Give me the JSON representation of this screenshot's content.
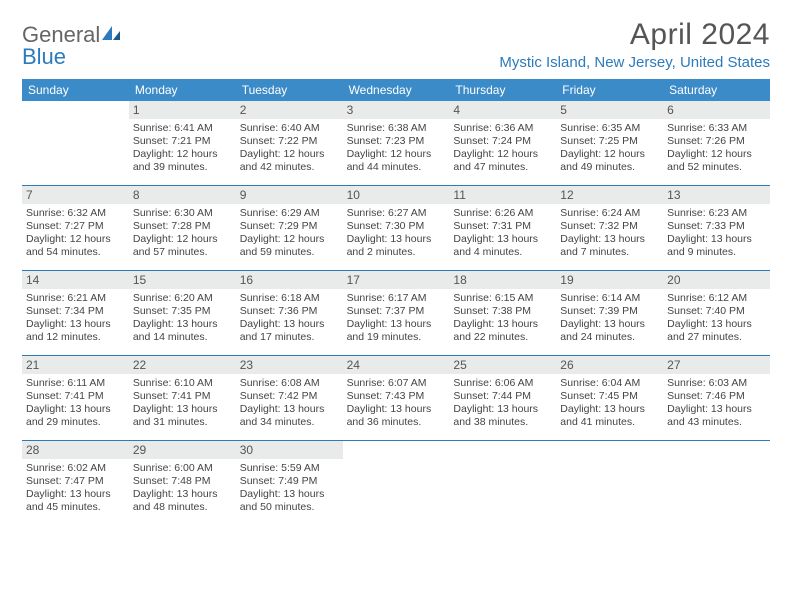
{
  "logo": {
    "line1": "General",
    "line2": "Blue"
  },
  "title": "April 2024",
  "subtitle": "Mystic Island, New Jersey, United States",
  "colors": {
    "header_bg": "#3b8bc9",
    "accent": "#2b7bbd",
    "daynum_bg": "#e9eaea",
    "text": "#444444",
    "page_bg": "#ffffff"
  },
  "typography": {
    "title_fontsize": 30,
    "subtitle_fontsize": 15,
    "dayheader_fontsize": 12,
    "cell_fontsize": 10.5
  },
  "day_names": [
    "Sunday",
    "Monday",
    "Tuesday",
    "Wednesday",
    "Thursday",
    "Friday",
    "Saturday"
  ],
  "weeks": [
    [
      {
        "empty": true
      },
      {
        "day": "1",
        "sunrise": "Sunrise: 6:41 AM",
        "sunset": "Sunset: 7:21 PM",
        "daylight1": "Daylight: 12 hours",
        "daylight2": "and 39 minutes."
      },
      {
        "day": "2",
        "sunrise": "Sunrise: 6:40 AM",
        "sunset": "Sunset: 7:22 PM",
        "daylight1": "Daylight: 12 hours",
        "daylight2": "and 42 minutes."
      },
      {
        "day": "3",
        "sunrise": "Sunrise: 6:38 AM",
        "sunset": "Sunset: 7:23 PM",
        "daylight1": "Daylight: 12 hours",
        "daylight2": "and 44 minutes."
      },
      {
        "day": "4",
        "sunrise": "Sunrise: 6:36 AM",
        "sunset": "Sunset: 7:24 PM",
        "daylight1": "Daylight: 12 hours",
        "daylight2": "and 47 minutes."
      },
      {
        "day": "5",
        "sunrise": "Sunrise: 6:35 AM",
        "sunset": "Sunset: 7:25 PM",
        "daylight1": "Daylight: 12 hours",
        "daylight2": "and 49 minutes."
      },
      {
        "day": "6",
        "sunrise": "Sunrise: 6:33 AM",
        "sunset": "Sunset: 7:26 PM",
        "daylight1": "Daylight: 12 hours",
        "daylight2": "and 52 minutes."
      }
    ],
    [
      {
        "day": "7",
        "sunrise": "Sunrise: 6:32 AM",
        "sunset": "Sunset: 7:27 PM",
        "daylight1": "Daylight: 12 hours",
        "daylight2": "and 54 minutes."
      },
      {
        "day": "8",
        "sunrise": "Sunrise: 6:30 AM",
        "sunset": "Sunset: 7:28 PM",
        "daylight1": "Daylight: 12 hours",
        "daylight2": "and 57 minutes."
      },
      {
        "day": "9",
        "sunrise": "Sunrise: 6:29 AM",
        "sunset": "Sunset: 7:29 PM",
        "daylight1": "Daylight: 12 hours",
        "daylight2": "and 59 minutes."
      },
      {
        "day": "10",
        "sunrise": "Sunrise: 6:27 AM",
        "sunset": "Sunset: 7:30 PM",
        "daylight1": "Daylight: 13 hours",
        "daylight2": "and 2 minutes."
      },
      {
        "day": "11",
        "sunrise": "Sunrise: 6:26 AM",
        "sunset": "Sunset: 7:31 PM",
        "daylight1": "Daylight: 13 hours",
        "daylight2": "and 4 minutes."
      },
      {
        "day": "12",
        "sunrise": "Sunrise: 6:24 AM",
        "sunset": "Sunset: 7:32 PM",
        "daylight1": "Daylight: 13 hours",
        "daylight2": "and 7 minutes."
      },
      {
        "day": "13",
        "sunrise": "Sunrise: 6:23 AM",
        "sunset": "Sunset: 7:33 PM",
        "daylight1": "Daylight: 13 hours",
        "daylight2": "and 9 minutes."
      }
    ],
    [
      {
        "day": "14",
        "sunrise": "Sunrise: 6:21 AM",
        "sunset": "Sunset: 7:34 PM",
        "daylight1": "Daylight: 13 hours",
        "daylight2": "and 12 minutes."
      },
      {
        "day": "15",
        "sunrise": "Sunrise: 6:20 AM",
        "sunset": "Sunset: 7:35 PM",
        "daylight1": "Daylight: 13 hours",
        "daylight2": "and 14 minutes."
      },
      {
        "day": "16",
        "sunrise": "Sunrise: 6:18 AM",
        "sunset": "Sunset: 7:36 PM",
        "daylight1": "Daylight: 13 hours",
        "daylight2": "and 17 minutes."
      },
      {
        "day": "17",
        "sunrise": "Sunrise: 6:17 AM",
        "sunset": "Sunset: 7:37 PM",
        "daylight1": "Daylight: 13 hours",
        "daylight2": "and 19 minutes."
      },
      {
        "day": "18",
        "sunrise": "Sunrise: 6:15 AM",
        "sunset": "Sunset: 7:38 PM",
        "daylight1": "Daylight: 13 hours",
        "daylight2": "and 22 minutes."
      },
      {
        "day": "19",
        "sunrise": "Sunrise: 6:14 AM",
        "sunset": "Sunset: 7:39 PM",
        "daylight1": "Daylight: 13 hours",
        "daylight2": "and 24 minutes."
      },
      {
        "day": "20",
        "sunrise": "Sunrise: 6:12 AM",
        "sunset": "Sunset: 7:40 PM",
        "daylight1": "Daylight: 13 hours",
        "daylight2": "and 27 minutes."
      }
    ],
    [
      {
        "day": "21",
        "sunrise": "Sunrise: 6:11 AM",
        "sunset": "Sunset: 7:41 PM",
        "daylight1": "Daylight: 13 hours",
        "daylight2": "and 29 minutes."
      },
      {
        "day": "22",
        "sunrise": "Sunrise: 6:10 AM",
        "sunset": "Sunset: 7:41 PM",
        "daylight1": "Daylight: 13 hours",
        "daylight2": "and 31 minutes."
      },
      {
        "day": "23",
        "sunrise": "Sunrise: 6:08 AM",
        "sunset": "Sunset: 7:42 PM",
        "daylight1": "Daylight: 13 hours",
        "daylight2": "and 34 minutes."
      },
      {
        "day": "24",
        "sunrise": "Sunrise: 6:07 AM",
        "sunset": "Sunset: 7:43 PM",
        "daylight1": "Daylight: 13 hours",
        "daylight2": "and 36 minutes."
      },
      {
        "day": "25",
        "sunrise": "Sunrise: 6:06 AM",
        "sunset": "Sunset: 7:44 PM",
        "daylight1": "Daylight: 13 hours",
        "daylight2": "and 38 minutes."
      },
      {
        "day": "26",
        "sunrise": "Sunrise: 6:04 AM",
        "sunset": "Sunset: 7:45 PM",
        "daylight1": "Daylight: 13 hours",
        "daylight2": "and 41 minutes."
      },
      {
        "day": "27",
        "sunrise": "Sunrise: 6:03 AM",
        "sunset": "Sunset: 7:46 PM",
        "daylight1": "Daylight: 13 hours",
        "daylight2": "and 43 minutes."
      }
    ],
    [
      {
        "day": "28",
        "sunrise": "Sunrise: 6:02 AM",
        "sunset": "Sunset: 7:47 PM",
        "daylight1": "Daylight: 13 hours",
        "daylight2": "and 45 minutes."
      },
      {
        "day": "29",
        "sunrise": "Sunrise: 6:00 AM",
        "sunset": "Sunset: 7:48 PM",
        "daylight1": "Daylight: 13 hours",
        "daylight2": "and 48 minutes."
      },
      {
        "day": "30",
        "sunrise": "Sunrise: 5:59 AM",
        "sunset": "Sunset: 7:49 PM",
        "daylight1": "Daylight: 13 hours",
        "daylight2": "and 50 minutes."
      },
      {
        "empty": true
      },
      {
        "empty": true
      },
      {
        "empty": true
      },
      {
        "empty": true
      }
    ]
  ]
}
